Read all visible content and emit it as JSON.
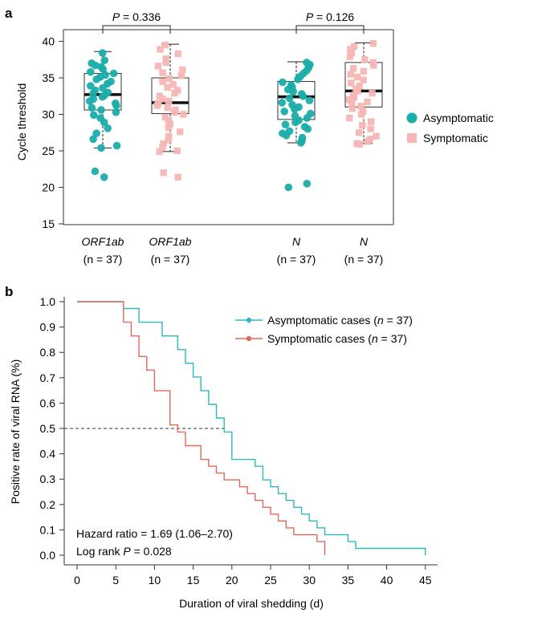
{
  "chart_data": [
    {
      "type": "box",
      "panel_label": "a",
      "ylabel": "Cycle threshold",
      "ylim": [
        15,
        41.5
      ],
      "yticks": [
        15,
        20,
        25,
        30,
        35,
        40
      ],
      "groups": [
        {
          "gene": "ORF1ab",
          "n_label": "(n = 37)",
          "series": "Asymptomatic",
          "box": {
            "min": 25.4,
            "q1": 30.6,
            "median": 32.7,
            "q3": 35.6,
            "max": 38.6
          },
          "points": [
            38.4,
            37.4,
            37.0,
            36.7,
            36.5,
            36.2,
            35.8,
            35.6,
            35.4,
            35.1,
            34.8,
            34.5,
            34.2,
            33.9,
            33.6,
            33.3,
            33.0,
            32.8,
            32.6,
            32.4,
            32.1,
            31.8,
            31.5,
            31.2,
            30.9,
            30.6,
            30.3,
            29.9,
            29.5,
            28.9,
            28.1,
            27.4,
            26.6,
            25.7,
            25.4,
            22.2,
            21.4
          ]
        },
        {
          "gene": "ORF1ab",
          "n_label": "(n = 37)",
          "series": "Symptomatic",
          "box": {
            "min": 24.9,
            "q1": 30.1,
            "median": 31.6,
            "q3": 35.0,
            "max": 39.6
          },
          "points": [
            39.5,
            38.9,
            38.3,
            37.6,
            37.1,
            36.6,
            36.1,
            35.7,
            35.3,
            34.9,
            34.5,
            34.1,
            33.7,
            33.3,
            32.9,
            32.5,
            32.1,
            31.8,
            31.5,
            31.2,
            30.9,
            30.6,
            30.3,
            30.0,
            29.6,
            29.2,
            28.7,
            28.2,
            27.6,
            27.0,
            26.5,
            26.0,
            25.5,
            25.0,
            24.9,
            22.0,
            21.4
          ]
        },
        {
          "gene": "N",
          "n_label": "(n = 37)",
          "series": "Asymptomatic",
          "box": {
            "min": 26.1,
            "q1": 29.3,
            "median": 32.4,
            "q3": 34.5,
            "max": 37.2
          },
          "points": [
            37.1,
            36.8,
            36.4,
            36.0,
            35.6,
            35.2,
            34.8,
            34.4,
            34.0,
            33.7,
            33.4,
            33.1,
            32.8,
            32.5,
            32.2,
            31.9,
            31.6,
            31.3,
            31.0,
            30.7,
            30.4,
            30.1,
            29.8,
            29.5,
            29.2,
            28.9,
            28.6,
            28.3,
            28.0,
            27.7,
            27.4,
            27.1,
            26.8,
            26.4,
            26.1,
            20.5,
            20.0
          ]
        },
        {
          "gene": "N",
          "n_label": "(n = 37)",
          "series": "Symptomatic",
          "box": {
            "min": 26.0,
            "q1": 31.0,
            "median": 33.2,
            "q3": 37.1,
            "max": 39.8
          },
          "points": [
            39.7,
            39.3,
            38.9,
            38.4,
            37.9,
            37.5,
            37.1,
            36.7,
            36.3,
            35.9,
            35.5,
            35.1,
            34.7,
            34.3,
            33.9,
            33.5,
            33.2,
            32.9,
            32.6,
            32.3,
            32.0,
            31.7,
            31.4,
            31.1,
            30.8,
            30.4,
            30.0,
            29.5,
            29.0,
            28.5,
            28.0,
            27.5,
            27.0,
            26.6,
            26.3,
            26.0,
            25.9
          ]
        }
      ],
      "comparisons": [
        {
          "label_prefix": "P",
          "label_value": " = 0.336"
        },
        {
          "label_prefix": "P",
          "label_value": " = 0.126"
        }
      ],
      "legend": [
        {
          "name": "Asymptomatic",
          "color": "#1aadaa",
          "marker": "circle"
        },
        {
          "name": "Symptomatic",
          "color": "#f6b6b4",
          "marker": "square"
        }
      ],
      "legend_position": "right"
    },
    {
      "type": "line",
      "panel_label": "b",
      "xlabel": "Duration of viral shedding (d)",
      "ylabel": "Positive rate of viral RNA (%)",
      "xlim": [
        0,
        45
      ],
      "ylim": [
        0,
        1.0
      ],
      "xticks": [
        0,
        5,
        10,
        15,
        20,
        25,
        30,
        35,
        40,
        45
      ],
      "yticks": [
        "0.0",
        "0.1",
        "0.2",
        "0.3",
        "0.4",
        "0.5",
        "0.6",
        "0.7",
        "0.8",
        "0.9",
        "1.0"
      ],
      "series": [
        {
          "name_prefix": "Asymptomatic cases (",
          "name_n": "n",
          "name_suffix": " = 37)",
          "color": "#2db8be",
          "x": [
            0,
            6,
            8,
            11,
            13,
            14,
            15,
            16,
            17,
            18,
            19,
            20,
            23,
            24,
            25,
            26,
            27,
            28,
            29,
            30,
            31,
            32,
            33,
            35,
            36,
            45
          ],
          "y": [
            1.0,
            0.973,
            0.919,
            0.865,
            0.811,
            0.757,
            0.703,
            0.649,
            0.595,
            0.541,
            0.486,
            0.378,
            0.351,
            0.297,
            0.27,
            0.243,
            0.216,
            0.189,
            0.162,
            0.135,
            0.108,
            0.081,
            0.081,
            0.054,
            0.027,
            0.0
          ]
        },
        {
          "name_prefix": "Symptomatic cases (",
          "name_n": "n",
          "name_suffix": " = 37)",
          "color": "#e2685d",
          "x": [
            0,
            6,
            7,
            8,
            9,
            10,
            12,
            13,
            14,
            16,
            17,
            18,
            19,
            21,
            22,
            23,
            24,
            25,
            26,
            27,
            28,
            31,
            32
          ],
          "y": [
            1.0,
            0.919,
            0.865,
            0.784,
            0.73,
            0.649,
            0.514,
            0.486,
            0.432,
            0.378,
            0.351,
            0.324,
            0.297,
            0.27,
            0.243,
            0.216,
            0.189,
            0.162,
            0.135,
            0.108,
            0.081,
            0.054,
            0.0
          ]
        }
      ],
      "median_line": {
        "y": 0.5,
        "x_end": 19
      },
      "annotations": [
        {
          "prefix": "Hazard ratio = 1.69 (1.06–2.70)",
          "ital": "",
          "suffix": ""
        },
        {
          "prefix": "Log rank ",
          "ital": "P",
          "suffix": " = 0.028"
        }
      ],
      "legend_position": "top-right"
    }
  ]
}
